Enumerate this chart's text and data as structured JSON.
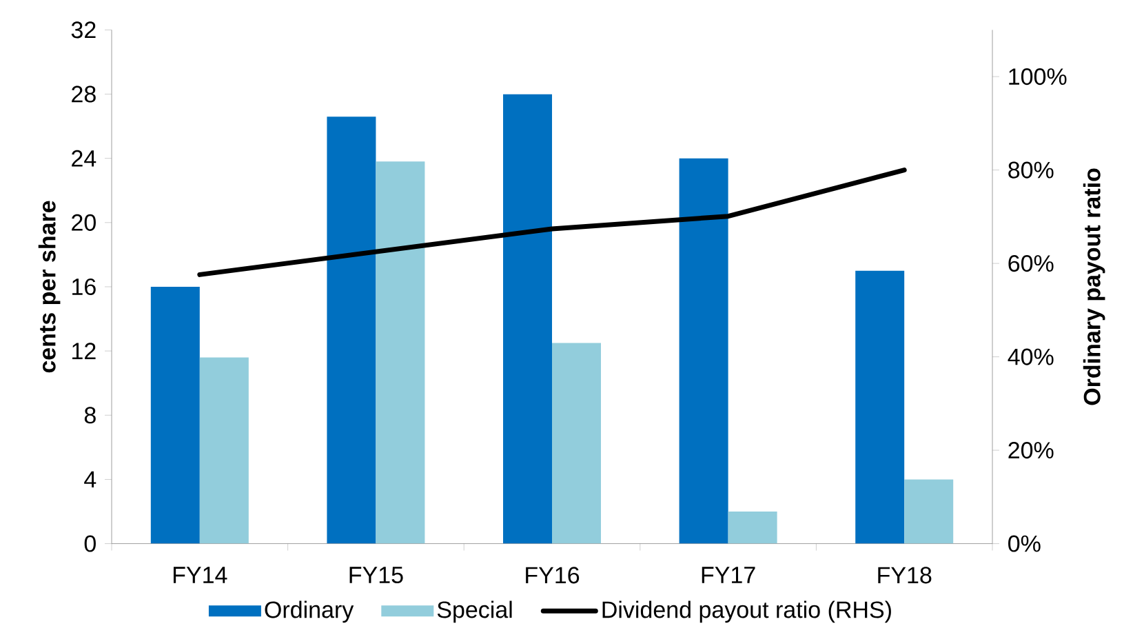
{
  "chart_data": {
    "type": "bar",
    "categories": [
      "FY14",
      "FY15",
      "FY16",
      "FY17",
      "FY18"
    ],
    "series": [
      {
        "name": "Ordinary",
        "color": "#0070c0",
        "values": [
          16,
          26.6,
          28,
          24,
          17
        ]
      },
      {
        "name": "Special",
        "color": "#92cddc",
        "values": [
          11.6,
          23.8,
          12.5,
          2,
          4
        ]
      },
      {
        "name": "Dividend payout ratio (RHS)",
        "type": "line",
        "axis": "y2",
        "color": "#000000",
        "values": [
          57.6,
          62.5,
          67.4,
          70.1,
          80
        ]
      }
    ],
    "ylabel": "cents per share",
    "y2label": "Ordinary payout ratio",
    "ylim": [
      0,
      32
    ],
    "yticks": [
      0,
      4,
      8,
      12,
      16,
      20,
      24,
      28,
      32
    ],
    "y2lim": [
      0,
      110
    ],
    "y2ticks": [
      {
        "value": 0,
        "label": "0%"
      },
      {
        "value": 20,
        "label": "20%"
      },
      {
        "value": 40,
        "label": "40%"
      },
      {
        "value": 60,
        "label": "60%"
      },
      {
        "value": 80,
        "label": "80%"
      },
      {
        "value": 100,
        "label": "100%"
      }
    ],
    "grid": false,
    "legend": "bottom"
  }
}
